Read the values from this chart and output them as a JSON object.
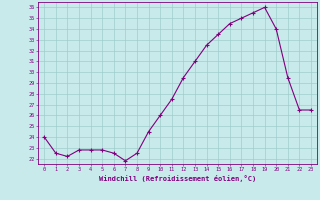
{
  "x": [
    0,
    1,
    2,
    3,
    4,
    5,
    6,
    7,
    8,
    9,
    10,
    11,
    12,
    13,
    14,
    15,
    16,
    17,
    18,
    19,
    20,
    21,
    22,
    23
  ],
  "y": [
    24.0,
    22.5,
    22.2,
    22.8,
    22.8,
    22.8,
    22.5,
    21.8,
    22.5,
    24.5,
    26.0,
    27.5,
    29.5,
    31.0,
    32.5,
    33.5,
    34.5,
    35.0,
    35.5,
    36.0,
    34.0,
    29.5,
    26.5,
    26.5
  ],
  "xlabel": "Windchill (Refroidissement éolien,°C)",
  "line_color": "#800080",
  "marker": "+",
  "bg_color": "#c8eaea",
  "grid_color": "#a0cccc",
  "ytick_labels": [
    "22",
    "23",
    "24",
    "25",
    "26",
    "27",
    "28",
    "29",
    "30",
    "31",
    "32",
    "33",
    "34",
    "35",
    "36"
  ],
  "ytick_vals": [
    22,
    23,
    24,
    25,
    26,
    27,
    28,
    29,
    30,
    31,
    32,
    33,
    34,
    35,
    36
  ],
  "ylim": [
    21.5,
    36.5
  ],
  "xlim": [
    -0.5,
    23.5
  ],
  "tick_color": "#800080",
  "label_color": "#800080"
}
